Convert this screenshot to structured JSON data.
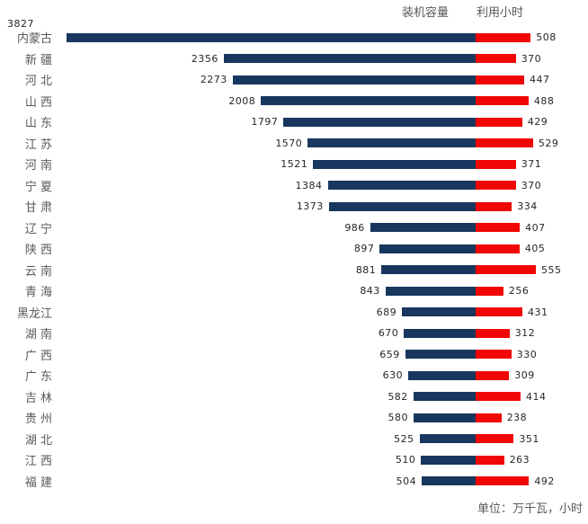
{
  "legend": {
    "capacity_label": "装机容量",
    "hours_label": "利用小时"
  },
  "footer": {
    "unit_note": "单位：万千瓦，小时"
  },
  "colors": {
    "capacity_bar": "#17375E",
    "hours_bar": "#F20505",
    "label_text": "#595959",
    "value_text": "#262626"
  },
  "chart_data": {
    "type": "bar",
    "orientation": "horizontal bidirectional tornado; capacity bars grow leftward from a shared center axis, utilization-hour bars grow rightward",
    "legend_position": "top-right",
    "value_labels_shown": true,
    "grid": false,
    "unit": "单位：万千瓦，小时",
    "categories": [
      "内蒙古",
      "新疆",
      "河北",
      "山西",
      "山东",
      "江苏",
      "河南",
      "宁夏",
      "甘肃",
      "辽宁",
      "陕西",
      "云南",
      "青海",
      "黑龙江",
      "湖南",
      "广西",
      "广东",
      "吉林",
      "贵州",
      "湖北",
      "江西",
      "福建"
    ],
    "display_labels": [
      "内蒙古",
      "新 疆",
      "河 北",
      "山 西",
      "山 东",
      "江 苏",
      "河 南",
      "宁 夏",
      "甘 肃",
      "辽 宁",
      "陕 西",
      "云 南",
      "青 海",
      "黑龙江",
      "湖 南",
      "广 西",
      "广 东",
      "吉 林",
      "贵 州",
      "湖 北",
      "江 西",
      "福 建"
    ],
    "series": [
      {
        "name": "装机容量",
        "color": "#17375E",
        "values": [
          3827,
          2356,
          2273,
          2008,
          1797,
          1570,
          1521,
          1384,
          1373,
          986,
          897,
          881,
          843,
          689,
          670,
          659,
          630,
          582,
          580,
          525,
          510,
          504
        ]
      },
      {
        "name": "利用小时",
        "color": "#F20505",
        "values": [
          508,
          370,
          447,
          488,
          429,
          529,
          371,
          370,
          334,
          407,
          405,
          555,
          256,
          431,
          312,
          330,
          309,
          414,
          238,
          351,
          263,
          492
        ]
      }
    ]
  }
}
